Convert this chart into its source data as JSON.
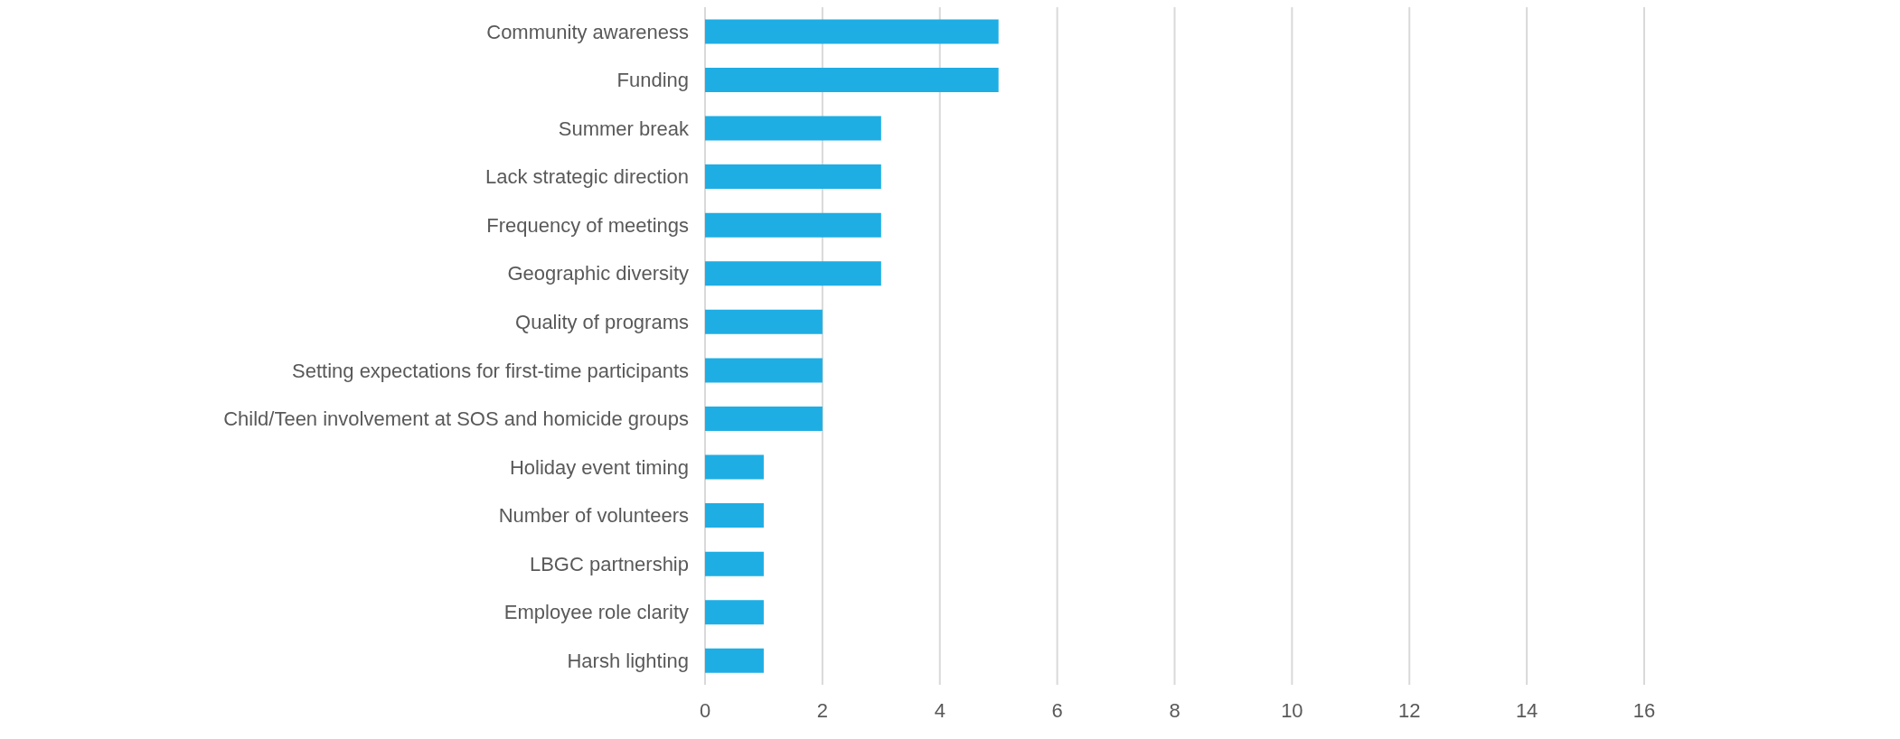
{
  "chart_data": {
    "type": "bar",
    "orientation": "horizontal",
    "categories": [
      "Community awareness",
      "Funding",
      "Summer break",
      "Lack strategic direction",
      "Frequency of meetings",
      "Geographic diversity",
      "Quality of programs",
      "Setting expectations for first-time participants",
      "Child/Teen involvement at SOS and homicide groups",
      "Holiday event timing",
      "Number of volunteers",
      "LBGC partnership",
      "Employee role clarity",
      "Harsh lighting"
    ],
    "values": [
      5,
      5,
      3,
      3,
      3,
      3,
      2,
      2,
      2,
      1,
      1,
      1,
      1,
      1
    ],
    "color": "#1eaee4",
    "xlim": [
      0,
      16
    ],
    "xticks": [
      0,
      2,
      4,
      6,
      8,
      10,
      12,
      14,
      16
    ],
    "grid": "x",
    "legend": false
  }
}
